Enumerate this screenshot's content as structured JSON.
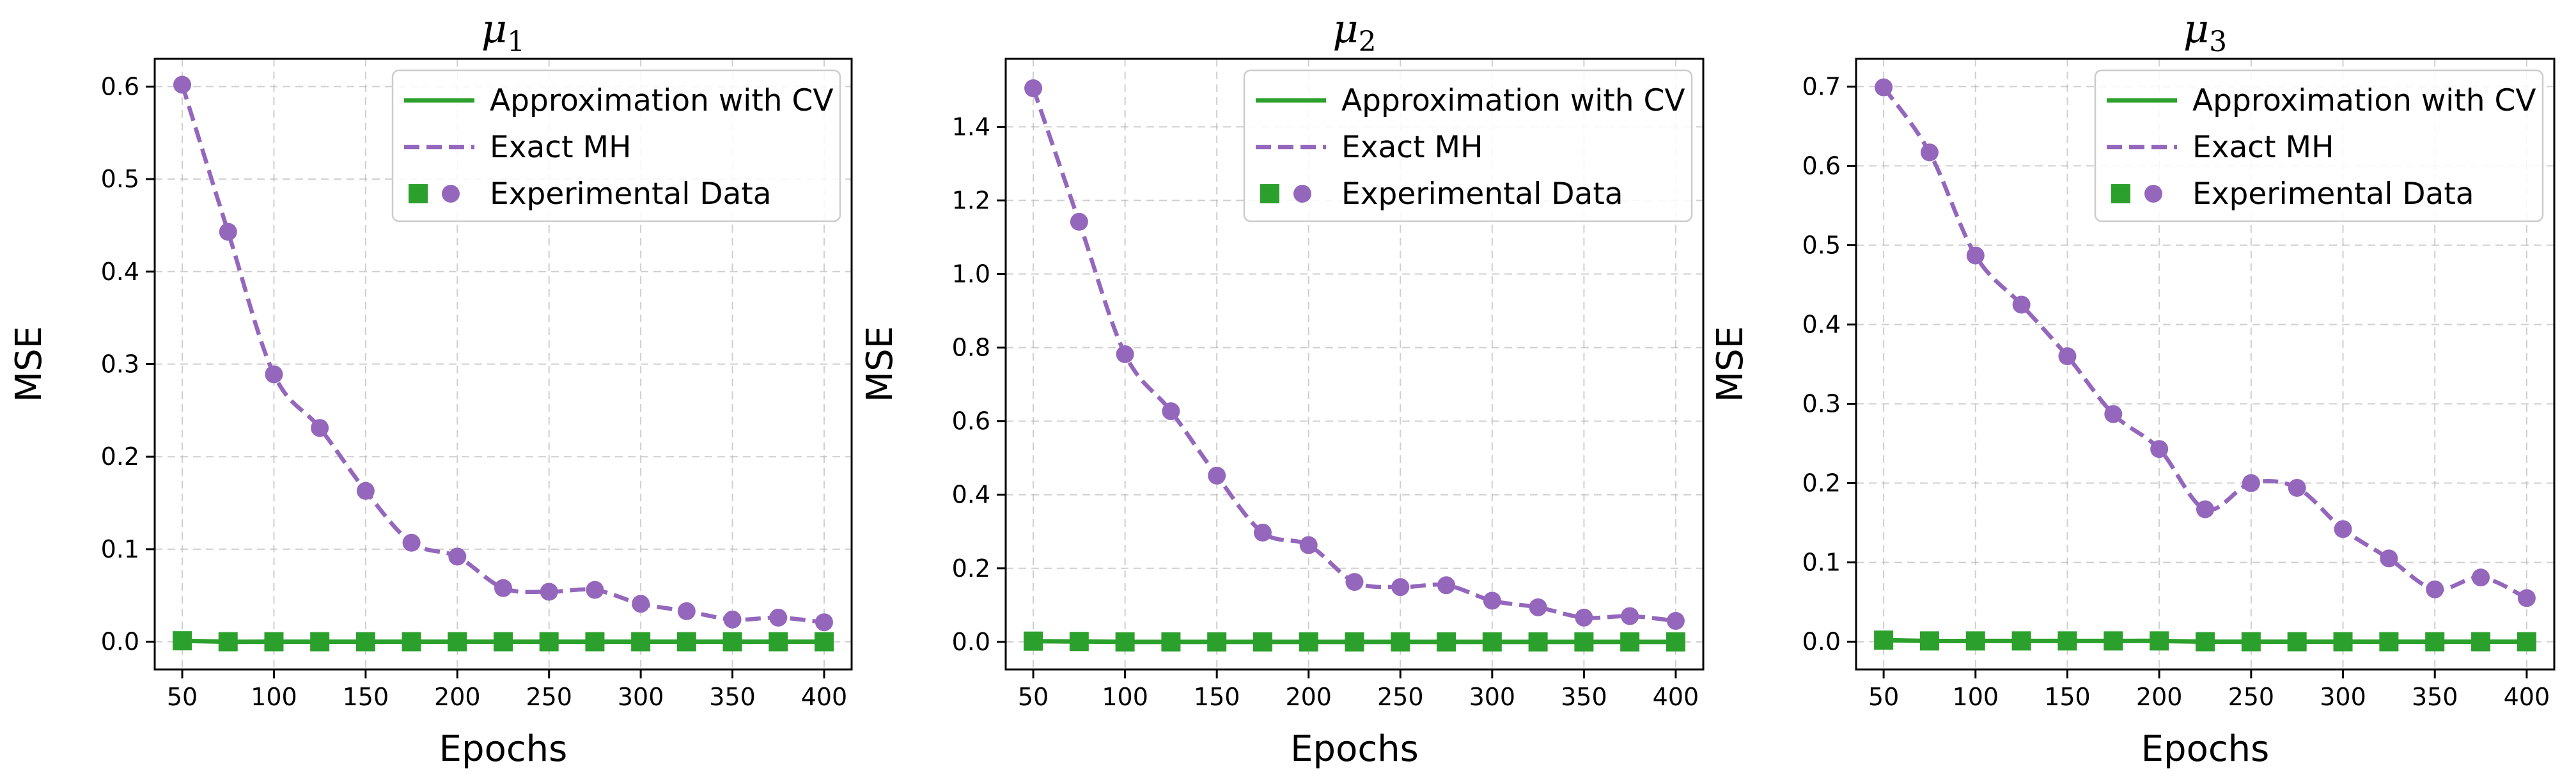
{
  "chart_data": [
    {
      "type": "line",
      "title": "μ",
      "title_subscript": "1",
      "xlabel": "Epochs",
      "ylabel": "MSE",
      "x": [
        50,
        75,
        100,
        125,
        150,
        175,
        200,
        225,
        250,
        275,
        300,
        325,
        350,
        375,
        400
      ],
      "xticks": [
        50,
        100,
        150,
        200,
        250,
        300,
        350,
        400
      ],
      "yticks": [
        0.0,
        0.1,
        0.2,
        0.3,
        0.4,
        0.5,
        0.6
      ],
      "ytick_labels": [
        "0.0",
        "0.1",
        "0.2",
        "0.3",
        "0.4",
        "0.5",
        "0.6"
      ],
      "xlim": [
        35,
        415
      ],
      "ylim": [
        -0.03,
        0.63
      ],
      "grid": true,
      "legend": "top-right",
      "series": [
        {
          "name": "Approximation with CV",
          "style": "solid",
          "marker": "square",
          "color": "#2ca02c",
          "values": [
            0.001,
            0.0,
            0.0,
            0.0,
            0.0,
            0.0,
            0.0,
            0.0,
            0.0,
            0.0,
            0.0,
            0.0,
            0.0,
            0.0,
            0.0
          ]
        },
        {
          "name": "Exact MH",
          "style": "dashed",
          "marker": "circle",
          "color": "#9467bd",
          "values": [
            0.602,
            0.443,
            0.289,
            0.231,
            0.163,
            0.107,
            0.092,
            0.058,
            0.054,
            0.056,
            0.041,
            0.033,
            0.024,
            0.026,
            0.021
          ]
        }
      ]
    },
    {
      "type": "line",
      "title": "μ",
      "title_subscript": "2",
      "xlabel": "Epochs",
      "ylabel": "MSE",
      "x": [
        50,
        75,
        100,
        125,
        150,
        175,
        200,
        225,
        250,
        275,
        300,
        325,
        350,
        375,
        400
      ],
      "xticks": [
        50,
        100,
        150,
        200,
        250,
        300,
        350,
        400
      ],
      "yticks": [
        0.0,
        0.2,
        0.4,
        0.6,
        0.8,
        1.0,
        1.2,
        1.4
      ],
      "ytick_labels": [
        "0.0",
        "0.2",
        "0.4",
        "0.6",
        "0.8",
        "1.0",
        "1.2",
        "1.4"
      ],
      "xlim": [
        35,
        415
      ],
      "ylim": [
        -0.075,
        1.585
      ],
      "grid": true,
      "legend": "top-right",
      "series": [
        {
          "name": "Approximation with CV",
          "style": "solid",
          "marker": "square",
          "color": "#2ca02c",
          "values": [
            0.002,
            0.001,
            0.0,
            0.0,
            0.0,
            0.0,
            0.0,
            0.0,
            0.0,
            0.0,
            0.0,
            0.0,
            0.0,
            0.0,
            0.0
          ]
        },
        {
          "name": "Exact MH",
          "style": "dashed",
          "marker": "circle",
          "color": "#9467bd",
          "values": [
            1.505,
            1.142,
            0.782,
            0.627,
            0.452,
            0.297,
            0.263,
            0.163,
            0.149,
            0.154,
            0.112,
            0.094,
            0.066,
            0.07,
            0.057
          ]
        }
      ]
    },
    {
      "type": "line",
      "title": "μ",
      "title_subscript": "3",
      "xlabel": "Epochs",
      "ylabel": "MSE",
      "x": [
        50,
        75,
        100,
        125,
        150,
        175,
        200,
        225,
        250,
        275,
        300,
        325,
        350,
        375,
        400
      ],
      "xticks": [
        50,
        100,
        150,
        200,
        250,
        300,
        350,
        400
      ],
      "yticks": [
        0.0,
        0.1,
        0.2,
        0.3,
        0.4,
        0.5,
        0.6,
        0.7
      ],
      "ytick_labels": [
        "0.0",
        "0.1",
        "0.2",
        "0.3",
        "0.4",
        "0.5",
        "0.6",
        "0.7"
      ],
      "xlim": [
        35,
        415
      ],
      "ylim": [
        -0.035,
        0.735
      ],
      "grid": true,
      "legend": "top-right",
      "series": [
        {
          "name": "Approximation with CV",
          "style": "solid",
          "marker": "square",
          "color": "#2ca02c",
          "values": [
            0.002,
            0.001,
            0.001,
            0.001,
            0.001,
            0.001,
            0.001,
            0.0,
            0.0,
            0.0,
            0.0,
            0.0,
            0.0,
            0.0,
            0.0
          ]
        },
        {
          "name": "Exact MH",
          "style": "dashed",
          "marker": "circle",
          "color": "#9467bd",
          "values": [
            0.699,
            0.617,
            0.487,
            0.425,
            0.36,
            0.287,
            0.243,
            0.167,
            0.2,
            0.194,
            0.142,
            0.105,
            0.066,
            0.081,
            0.055
          ]
        }
      ]
    }
  ],
  "legend_labels": {
    "cv": "Approximation with CV",
    "mh": "Exact MH",
    "data": "Experimental Data"
  }
}
